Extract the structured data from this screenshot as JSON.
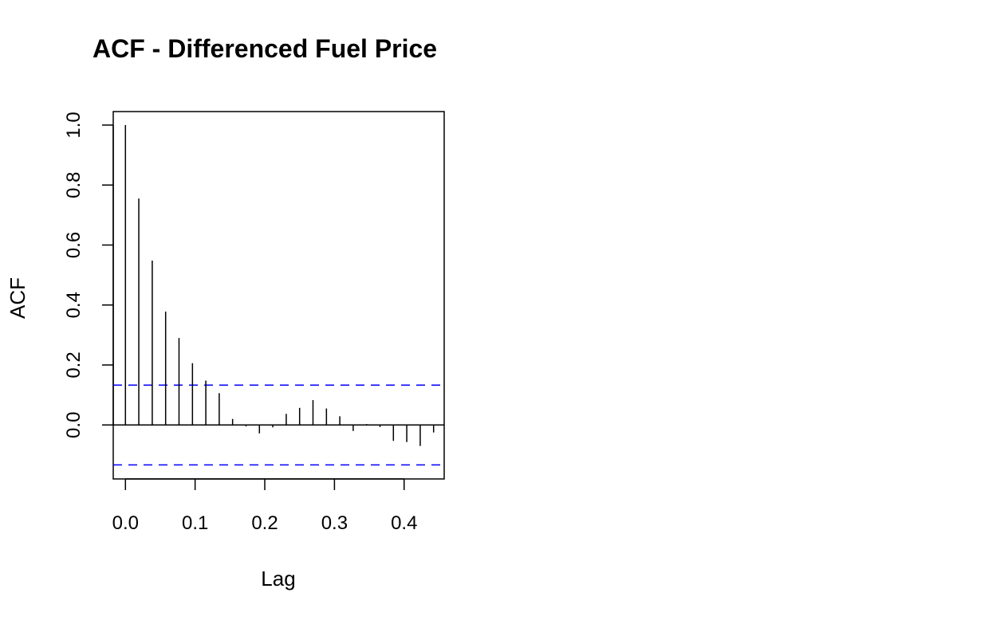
{
  "chart_data": {
    "type": "bar",
    "title": "ACF - Differenced Fuel Price",
    "xlabel": "Lag",
    "ylabel": "ACF",
    "xlim": [
      -0.0175,
      0.4575
    ],
    "ylim": [
      -0.18,
      1.045
    ],
    "x_ticks": [
      "0.0",
      "0.1",
      "0.2",
      "0.3",
      "0.4"
    ],
    "y_ticks": [
      "0.0",
      "0.2",
      "0.4",
      "0.6",
      "0.8",
      "1.0"
    ],
    "lag": [
      0.0,
      0.0192,
      0.0385,
      0.0577,
      0.0769,
      0.0962,
      0.1154,
      0.1346,
      0.1538,
      0.1731,
      0.1923,
      0.2115,
      0.2308,
      0.25,
      0.2692,
      0.2885,
      0.3077,
      0.3269,
      0.3462,
      0.3654,
      0.3846,
      0.4038,
      0.4231,
      0.4423
    ],
    "acf": [
      1.0,
      0.755,
      0.548,
      0.378,
      0.29,
      0.206,
      0.148,
      0.106,
      0.02,
      -0.005,
      -0.028,
      -0.008,
      0.037,
      0.057,
      0.083,
      0.055,
      0.029,
      -0.02,
      0.003,
      -0.007,
      -0.053,
      -0.057,
      -0.07,
      -0.025
    ],
    "confidence_bound": 0.133,
    "line_color": "#000000",
    "ci_color": "#0000ff",
    "grid": false
  }
}
